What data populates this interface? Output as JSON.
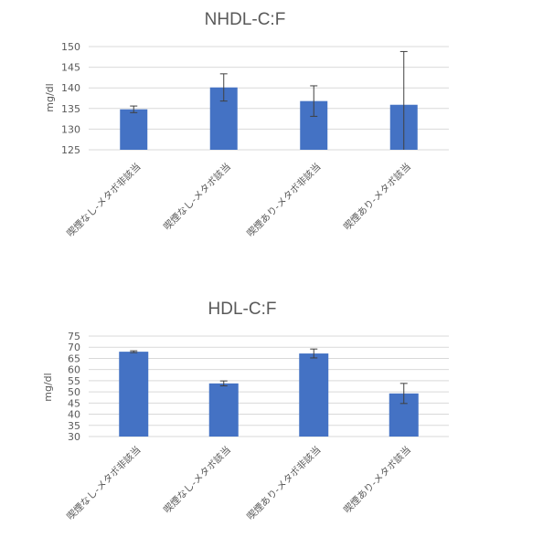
{
  "chart_data": [
    {
      "type": "bar",
      "title": "NHDL-C:F",
      "xlabel": "",
      "ylabel": "mg/dl",
      "categories": [
        "喫煙なし-メタボ非該当",
        "喫煙なし-メタボ該当",
        "喫煙あり-メタボ非該当",
        "喫煙あり-メタボ該当"
      ],
      "values": [
        134.8,
        140.1,
        136.8,
        135.9
      ],
      "errors": [
        0.8,
        3.3,
        3.7,
        12.9
      ],
      "ylim": [
        125,
        150
      ],
      "yticks": [
        125,
        130,
        135,
        140,
        145,
        150
      ],
      "grid": true
    },
    {
      "type": "bar",
      "title": "HDL-C:F",
      "xlabel": "",
      "ylabel": "mg/dl",
      "categories": [
        "喫煙なし-メタボ非該当",
        "喫煙なし-メタボ該当",
        "喫煙あり-メタボ非該当",
        "喫煙あり-メタボ該当"
      ],
      "values": [
        68.0,
        53.8,
        67.2,
        49.3
      ],
      "errors": [
        0.4,
        1.1,
        2.0,
        4.5
      ],
      "ylim": [
        30,
        75
      ],
      "yticks": [
        30,
        35,
        40,
        45,
        50,
        55,
        60,
        65,
        70,
        75
      ],
      "grid": true
    }
  ],
  "colors": {
    "bar": "#4472C4",
    "error_bar": "#404040",
    "gridline": "#D9D9D9",
    "text": "#595959"
  }
}
